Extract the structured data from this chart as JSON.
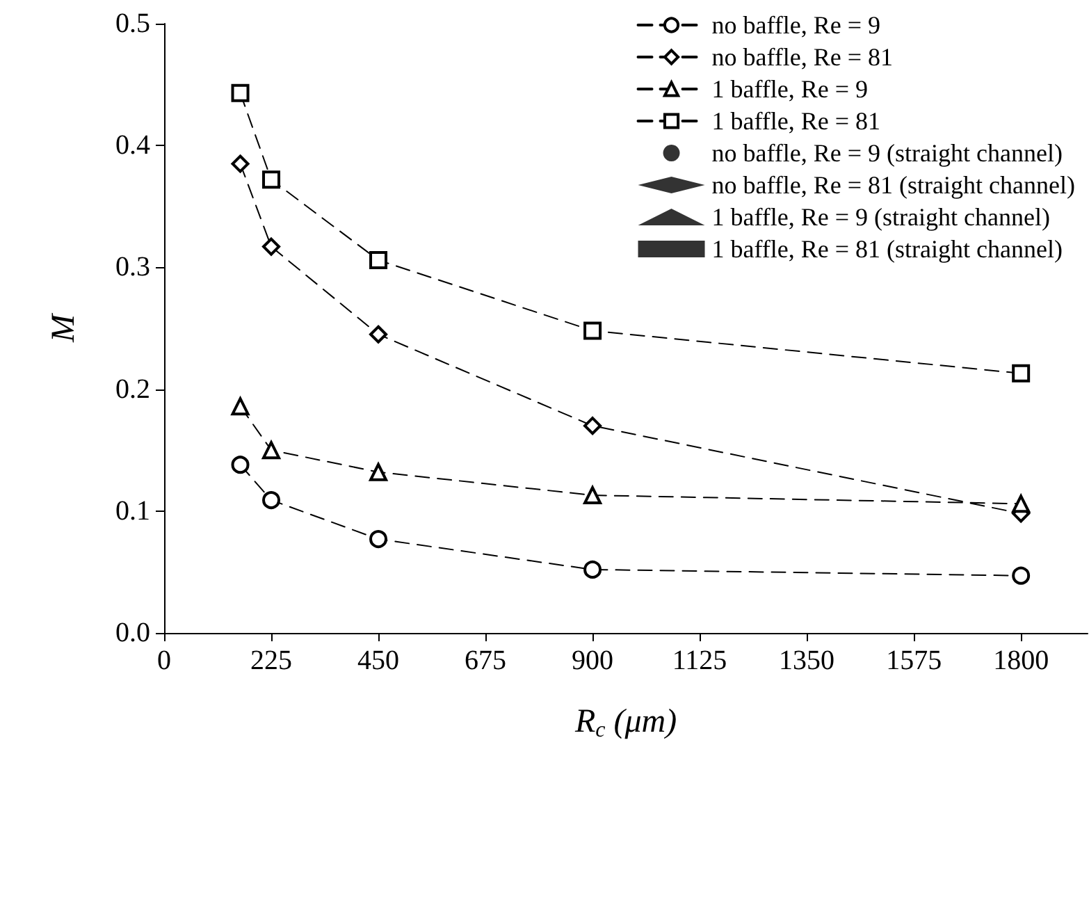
{
  "chart_data": {
    "type": "line",
    "xlabel": "R$_{c}$ (μm)",
    "ylabel": "M",
    "x": [
      160,
      225,
      450,
      900,
      1800
    ],
    "xlim": [
      0,
      1940
    ],
    "xticks": [
      0,
      225,
      450,
      675,
      900,
      1125,
      1350,
      1575,
      1800
    ],
    "ylim": [
      0,
      0.5
    ],
    "yticks": [
      {
        "value": 0,
        "label": "0.0"
      },
      0.1,
      0.2,
      0.3,
      0.4,
      0.5
    ],
    "grid": false,
    "legend": "top right",
    "line_style": "dashed",
    "series": [
      {
        "name": "no baffle, Re = 9",
        "color": "#000000",
        "marker": "circle",
        "values": [
          0.138,
          0.109,
          0.077,
          0.052,
          0.047
        ]
      },
      {
        "name": "no baffle, Re = 81",
        "color": "#000000",
        "marker": "diamond",
        "values": [
          0.385,
          0.317,
          0.245,
          0.17,
          0.098
        ]
      },
      {
        "name": "1 baffle, Re = 9",
        "color": "#000000",
        "marker": "triangle",
        "values": [
          0.186,
          0.15,
          0.132,
          0.113,
          0.106
        ]
      },
      {
        "name": "1 baffle, Re = 81",
        "color": "#000000",
        "marker": "square",
        "values": [
          0.443,
          0.372,
          0.306,
          0.248,
          0.213
        ]
      },
      {
        "name": "no baffle, Re = 9 (straight channel)",
        "type": "scatter",
        "color": "#000000",
        "marker": "circle",
        "values": [
          null,
          null,
          null,
          null,
          null
        ]
      },
      {
        "name": "no baffle, Re = 81 (straight channel)",
        "type": "scatter",
        "color": "#000000",
        "marker": "diamond",
        "values": [
          null,
          null,
          null,
          null,
          null
        ]
      },
      {
        "name": "1 baffle, Re = 9 (straight channel)",
        "type": "scatter",
        "color": "#000000",
        "marker": "triangle",
        "values": [
          null,
          null,
          null,
          null,
          null
        ]
      },
      {
        "name": "1 baffle, Re = 81 (straight channel)",
        "type": "scatter",
        "color": "#000000",
        "marker": "square",
        "values": [
          null,
          null,
          null,
          null,
          null
        ]
      }
    ]
  }
}
